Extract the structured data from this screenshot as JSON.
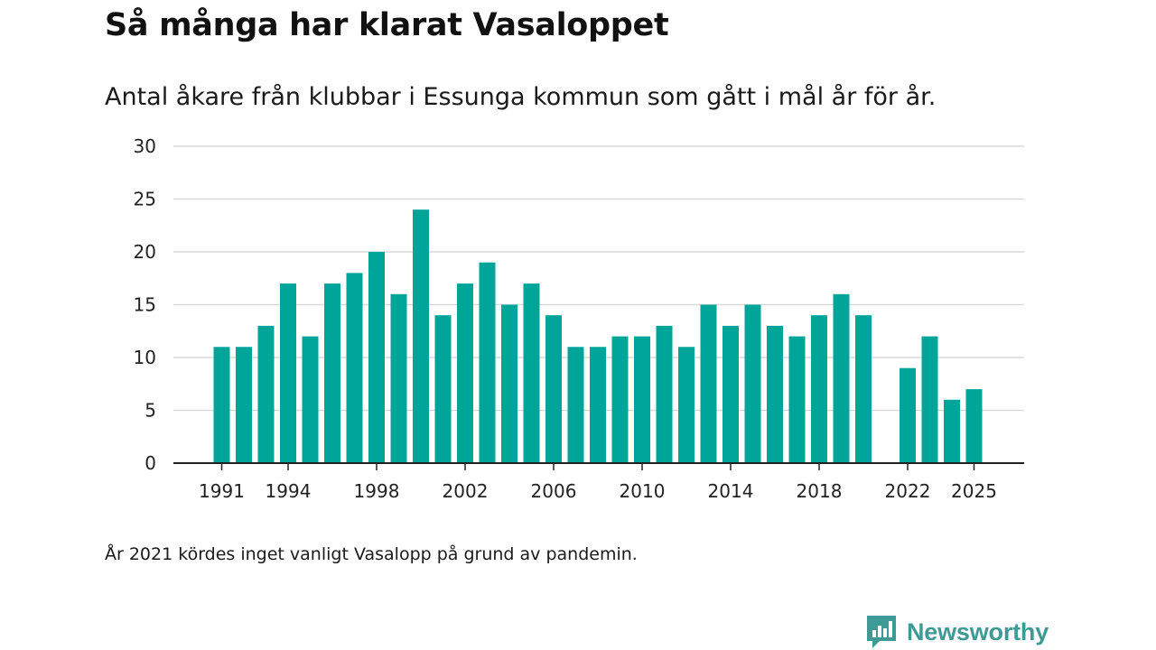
{
  "header": {
    "title": "Så många har klarat Vasaloppet",
    "subtitle": "Antal åkare från klubbar i Essunga kommun som gått i mål år för år."
  },
  "footer": {
    "note": "År 2021 kördes inget vanligt Vasalopp på grund av pandemin.",
    "brand": "Newsworthy",
    "brand_icon": "newsworthy-logo-icon"
  },
  "colors": {
    "bar": "#00a59a",
    "grid": "#d9d9d9",
    "axis": "#222222",
    "brand": "#3f9a96"
  },
  "chart_data": {
    "type": "bar",
    "title": "Så många har klarat Vasaloppet",
    "subtitle": "Antal åkare från klubbar i Essunga kommun som gått i mål år för år.",
    "xlabel": "",
    "ylabel": "",
    "ylim": [
      0,
      30
    ],
    "yticks": [
      "0",
      "5",
      "10",
      "15",
      "20",
      "25",
      "30"
    ],
    "xticks": [
      "1991",
      "1994",
      "1998",
      "2002",
      "2006",
      "2010",
      "2014",
      "2018",
      "2022",
      "2025"
    ],
    "grid": true,
    "legend": "none",
    "categories": [
      1991,
      1992,
      1993,
      1994,
      1995,
      1996,
      1997,
      1998,
      1999,
      2000,
      2001,
      2002,
      2003,
      2004,
      2005,
      2006,
      2007,
      2008,
      2009,
      2010,
      2011,
      2012,
      2013,
      2014,
      2015,
      2016,
      2017,
      2018,
      2019,
      2020,
      2021,
      2022,
      2023,
      2024,
      2025
    ],
    "values": [
      11,
      11,
      13,
      17,
      12,
      17,
      18,
      20,
      16,
      24,
      14,
      17,
      19,
      15,
      17,
      14,
      11,
      11,
      12,
      12,
      13,
      11,
      15,
      13,
      15,
      13,
      12,
      14,
      16,
      14,
      null,
      9,
      12,
      6,
      7
    ]
  }
}
